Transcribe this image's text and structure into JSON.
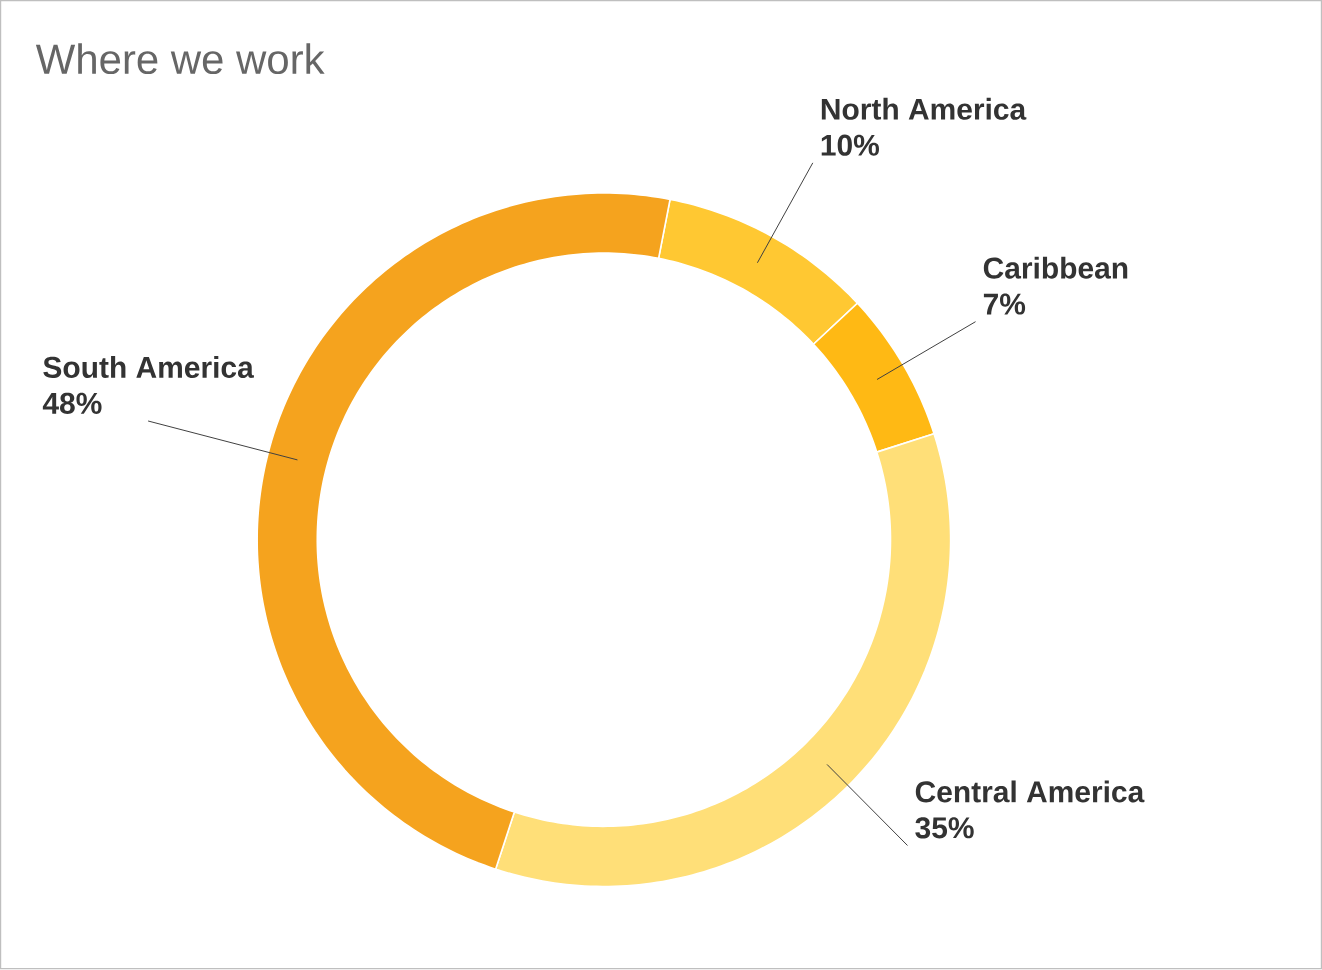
{
  "chart_data": {
    "type": "donut",
    "title": "Where we work",
    "categories": [
      "North America",
      "Caribbean",
      "Central America",
      "South America"
    ],
    "values": [
      10,
      7,
      35,
      48
    ],
    "value_labels": [
      "10%",
      "7%",
      "35%",
      "48%"
    ],
    "colors": [
      "#ffc832",
      "#ffb914",
      "#ffdf78",
      "#f5a31e"
    ]
  }
}
